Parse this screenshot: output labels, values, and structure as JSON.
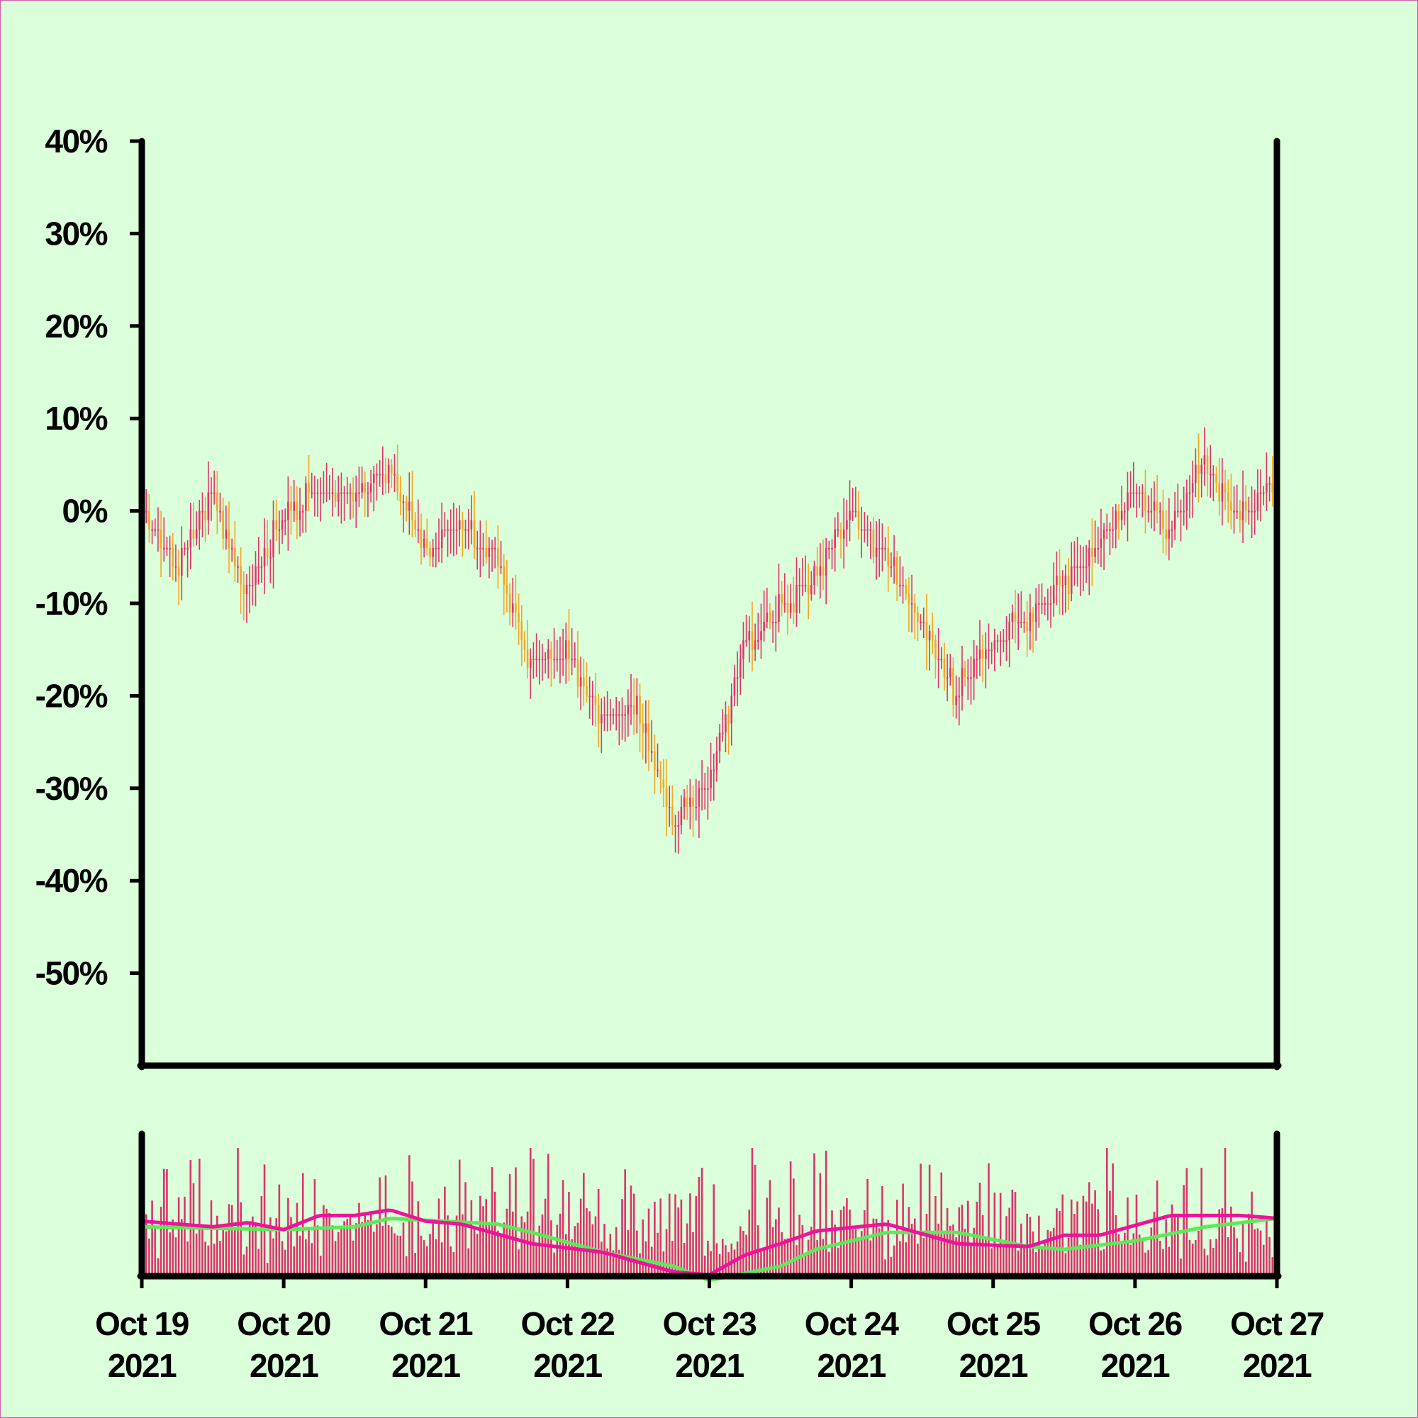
{
  "colors": {
    "background": "#daffda",
    "border": "#d65ba8",
    "axis": "#000000",
    "candle_up": "#e0356a",
    "candle_down": "#f5a623",
    "volume": "#d9366a",
    "ma_short": "#f0129a",
    "ma_long": "#5ee85a"
  },
  "chart_data": [
    {
      "type": "candlestick",
      "panel": "price",
      "title": "",
      "xlabel": "",
      "ylabel": "",
      "ylim": [
        -60,
        40
      ],
      "y_ticks": [
        "40%",
        "30%",
        "20%",
        "10%",
        "0%",
        "-10%",
        "-20%",
        "-30%",
        "-40%",
        "-50%"
      ],
      "y_tick_values": [
        40,
        30,
        20,
        10,
        0,
        -10,
        -20,
        -30,
        -40,
        -50
      ],
      "x_ticks": [
        {
          "date": "Oct 19",
          "year": "2021"
        },
        {
          "date": "Oct 20",
          "year": "2021"
        },
        {
          "date": "Oct 21",
          "year": "2021"
        },
        {
          "date": "Oct 22",
          "year": "2021"
        },
        {
          "date": "Oct 23",
          "year": "2021"
        },
        {
          "date": "Oct 24",
          "year": "2021"
        },
        {
          "date": "Oct 25",
          "year": "2021"
        },
        {
          "date": "Oct 26",
          "year": "2021"
        },
        {
          "date": "Oct 27",
          "year": "2021"
        }
      ],
      "xlim": [
        "2021-10-19",
        "2021-10-27"
      ],
      "bar_interval": "30min",
      "grid": false,
      "legend": "none",
      "close_path": [
        [
          "2021-10-19",
          0
        ],
        [
          "2021-10-19 06:00",
          -6
        ],
        [
          "2021-10-19 12:00",
          2
        ],
        [
          "2021-10-19 18:00",
          -9
        ],
        [
          "2021-10-20 00:00",
          -1
        ],
        [
          "2021-10-20 06:00",
          2
        ],
        [
          "2021-10-20 12:00",
          1
        ],
        [
          "2021-10-20 18:00",
          5
        ],
        [
          "2021-10-21 00:00",
          -4
        ],
        [
          "2021-10-21 06:00",
          -2
        ],
        [
          "2021-10-21 12:00",
          -5
        ],
        [
          "2021-10-21 18:00",
          -17
        ],
        [
          "2021-10-22 00:00",
          -15
        ],
        [
          "2021-10-22 06:00",
          -23
        ],
        [
          "2021-10-22 12:00",
          -21
        ],
        [
          "2021-10-22 18:00",
          -34
        ],
        [
          "2021-10-23 00:00",
          -30
        ],
        [
          "2021-10-23 06:00",
          -15
        ],
        [
          "2021-10-23 12:00",
          -11
        ],
        [
          "2021-10-23 18:00",
          -7
        ],
        [
          "2021-10-24 00:00",
          0
        ],
        [
          "2021-10-24 06:00",
          -5
        ],
        [
          "2021-10-24 12:00",
          -12
        ],
        [
          "2021-10-24 18:00",
          -20
        ],
        [
          "2021-10-25 00:00",
          -14
        ],
        [
          "2021-10-25 06:00",
          -12
        ],
        [
          "2021-10-25 12:00",
          -8
        ],
        [
          "2021-10-25 18:00",
          -4
        ],
        [
          "2021-10-26 00:00",
          2
        ],
        [
          "2021-10-26 06:00",
          -2
        ],
        [
          "2021-10-26 12:00",
          5
        ],
        [
          "2021-10-26 18:00",
          -1
        ],
        [
          "2021-10-27 00:00",
          3
        ]
      ]
    },
    {
      "type": "bar",
      "panel": "volume",
      "title": "",
      "series": [
        {
          "kind": "volume bars"
        },
        {
          "kind": "moving average (short)"
        },
        {
          "kind": "moving average (long)"
        }
      ],
      "ylim": [
        0,
        1
      ],
      "y_ticks": [],
      "volume_level": 0.75,
      "ma_short_path": [
        [
          "2021-10-19",
          0.38
        ],
        [
          "2021-10-19 12:00",
          0.34
        ],
        [
          "2021-10-19 18:00",
          0.37
        ],
        [
          "2021-10-20 00:00",
          0.32
        ],
        [
          "2021-10-20 06:00",
          0.42
        ],
        [
          "2021-10-20 12:00",
          0.42
        ],
        [
          "2021-10-20 18:00",
          0.46
        ],
        [
          "2021-10-21 00:00",
          0.38
        ],
        [
          "2021-10-21 06:00",
          0.36
        ],
        [
          "2021-10-21 18:00",
          0.22
        ],
        [
          "2021-10-22 06:00",
          0.16
        ],
        [
          "2021-10-22 18:00",
          0.02
        ],
        [
          "2021-10-23 00:00",
          0.0
        ],
        [
          "2021-10-23 06:00",
          0.14
        ],
        [
          "2021-10-23 12:00",
          0.22
        ],
        [
          "2021-10-23 18:00",
          0.31
        ],
        [
          "2021-10-24 06:00",
          0.36
        ],
        [
          "2021-10-24 18:00",
          0.22
        ],
        [
          "2021-10-25 06:00",
          0.2
        ],
        [
          "2021-10-25 12:00",
          0.28
        ],
        [
          "2021-10-25 18:00",
          0.28
        ],
        [
          "2021-10-26 06:00",
          0.42
        ],
        [
          "2021-10-26 18:00",
          0.42
        ],
        [
          "2021-10-27 00:00",
          0.4
        ]
      ],
      "ma_long_path": [
        [
          "2021-10-19",
          0.34
        ],
        [
          "2021-10-20 00:00",
          0.32
        ],
        [
          "2021-10-20 12:00",
          0.34
        ],
        [
          "2021-10-20 18:00",
          0.4
        ],
        [
          "2021-10-21 12:00",
          0.36
        ],
        [
          "2021-10-21 18:00",
          0.3
        ],
        [
          "2021-10-22 06:00",
          0.16
        ],
        [
          "2021-10-22 18:00",
          0.06
        ],
        [
          "2021-10-23 00:00",
          -0.04
        ],
        [
          "2021-10-23 12:00",
          0.06
        ],
        [
          "2021-10-23 18:00",
          0.18
        ],
        [
          "2021-10-24 06:00",
          0.3
        ],
        [
          "2021-10-24 18:00",
          0.3
        ],
        [
          "2021-10-25 06:00",
          0.2
        ],
        [
          "2021-10-25 12:00",
          0.18
        ],
        [
          "2021-10-26 00:00",
          0.24
        ],
        [
          "2021-10-26 12:00",
          0.34
        ],
        [
          "2021-10-27 00:00",
          0.4
        ]
      ]
    }
  ]
}
